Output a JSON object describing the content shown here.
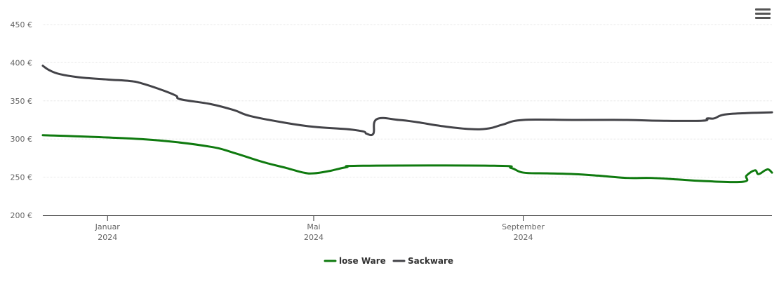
{
  "menu": {
    "icon": "hamburger-menu-icon"
  },
  "colors": {
    "lose_ware": "#0f7a0f",
    "sackware": "#434348",
    "grid": "#e6e6e6",
    "axis": "#333333"
  },
  "chart_data": {
    "type": "line",
    "title": "",
    "xlabel": "",
    "ylabel": "",
    "x_axis": {
      "type": "datetime",
      "range": [
        "2023-11-24",
        "2025-01-25"
      ],
      "ticks": [
        {
          "date": "2024-01-01",
          "label": "Januar",
          "sublabel": "2024"
        },
        {
          "date": "2024-05-01",
          "label": "Mai",
          "sublabel": "2024"
        },
        {
          "date": "2024-09-01",
          "label": "September",
          "sublabel": "2024"
        }
      ]
    },
    "y_axis": {
      "range": [
        200,
        450
      ],
      "ticks": [
        {
          "value": 200,
          "label": "200 €"
        },
        {
          "value": 250,
          "label": "250 €"
        },
        {
          "value": 300,
          "label": "300 €"
        },
        {
          "value": 350,
          "label": "350 €"
        },
        {
          "value": 400,
          "label": "400 €"
        },
        {
          "value": 450,
          "label": "450 €"
        }
      ],
      "grid": true
    },
    "legend": {
      "position": "bottom-center"
    },
    "series": [
      {
        "name": "lose Ware",
        "color": "#0f7a0f",
        "points": [
          [
            "2023-11-24",
            305
          ],
          [
            "2024-01-01",
            302
          ],
          [
            "2024-02-01",
            298
          ],
          [
            "2024-03-01",
            290
          ],
          [
            "2024-03-15",
            282
          ],
          [
            "2024-04-01",
            270
          ],
          [
            "2024-04-15",
            262
          ],
          [
            "2024-04-25",
            256
          ],
          [
            "2024-05-01",
            255
          ],
          [
            "2024-05-10",
            258
          ],
          [
            "2024-05-20",
            263
          ],
          [
            "2024-05-30",
            265
          ],
          [
            "2024-08-15",
            265
          ],
          [
            "2024-08-25",
            262
          ],
          [
            "2024-09-01",
            256
          ],
          [
            "2024-09-15",
            255
          ],
          [
            "2024-10-01",
            254
          ],
          [
            "2024-10-15",
            252
          ],
          [
            "2024-11-01",
            249
          ],
          [
            "2024-11-15",
            249
          ],
          [
            "2024-12-01",
            247
          ],
          [
            "2024-12-15",
            245
          ],
          [
            "2025-01-08",
            244
          ],
          [
            "2025-01-10",
            252
          ],
          [
            "2025-01-15",
            259
          ],
          [
            "2025-01-17",
            254
          ],
          [
            "2025-01-21",
            259
          ],
          [
            "2025-01-23",
            260
          ],
          [
            "2025-01-25",
            256
          ]
        ]
      },
      {
        "name": "Sackware",
        "color": "#434348",
        "points": [
          [
            "2023-11-24",
            396
          ],
          [
            "2023-11-28",
            390
          ],
          [
            "2023-12-04",
            385
          ],
          [
            "2023-12-15",
            381
          ],
          [
            "2024-01-01",
            378
          ],
          [
            "2024-01-14",
            376
          ],
          [
            "2024-01-21",
            373
          ],
          [
            "2024-02-01",
            365
          ],
          [
            "2024-02-10",
            357
          ],
          [
            "2024-02-13",
            352
          ],
          [
            "2024-03-01",
            346
          ],
          [
            "2024-03-15",
            338
          ],
          [
            "2024-03-25",
            330
          ],
          [
            "2024-04-15",
            321
          ],
          [
            "2024-05-01",
            316
          ],
          [
            "2024-05-20",
            313
          ],
          [
            "2024-05-30",
            310
          ],
          [
            "2024-06-01",
            307
          ],
          [
            "2024-06-05",
            307
          ],
          [
            "2024-06-07",
            326
          ],
          [
            "2024-06-20",
            325
          ],
          [
            "2024-07-01",
            322
          ],
          [
            "2024-07-15",
            317
          ],
          [
            "2024-08-01",
            313
          ],
          [
            "2024-08-12",
            314
          ],
          [
            "2024-08-20",
            319
          ],
          [
            "2024-09-01",
            325
          ],
          [
            "2024-10-01",
            325
          ],
          [
            "2024-11-01",
            325
          ],
          [
            "2024-11-20",
            324
          ],
          [
            "2024-12-15",
            324
          ],
          [
            "2024-12-18",
            327
          ],
          [
            "2024-12-22",
            327
          ],
          [
            "2024-12-28",
            332
          ],
          [
            "2025-01-10",
            334
          ],
          [
            "2025-01-25",
            335
          ]
        ]
      }
    ]
  }
}
